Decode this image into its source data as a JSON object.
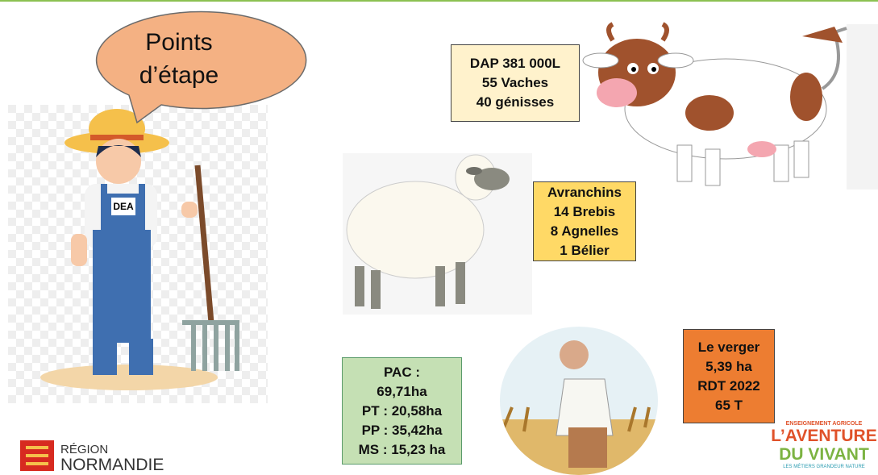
{
  "bubble": {
    "lines": [
      "Points",
      "d’étape"
    ]
  },
  "farmer": {
    "badge": "DEA"
  },
  "cow_box": {
    "lines": [
      "DAP 381 000L",
      "55 Vaches",
      "40 génisses"
    ]
  },
  "sheep_box": {
    "lines": [
      "Avranchins",
      "14 Brebis",
      "8 Agnelles",
      "1 Bélier"
    ]
  },
  "pac_box": {
    "lines": [
      "PAC :",
      "69,71ha",
      "PT : 20,58ha",
      "PP : 35,42ha",
      "MS : 15,23 ha"
    ]
  },
  "orchard_box": {
    "lines": [
      "Le verger",
      "5,39 ha",
      "RDT 2022",
      "65 T"
    ]
  },
  "region_logo": {
    "line1": "RÉGION",
    "line2": "NORMANDIE"
  },
  "aventure_logo": {
    "top": "ENSEIGNEMENT AGRICOLE",
    "line1": "L’AVENTURE",
    "line2": "DU VIVANT",
    "bottom": "LES MÉTIERS GRANDEUR NATURE"
  }
}
